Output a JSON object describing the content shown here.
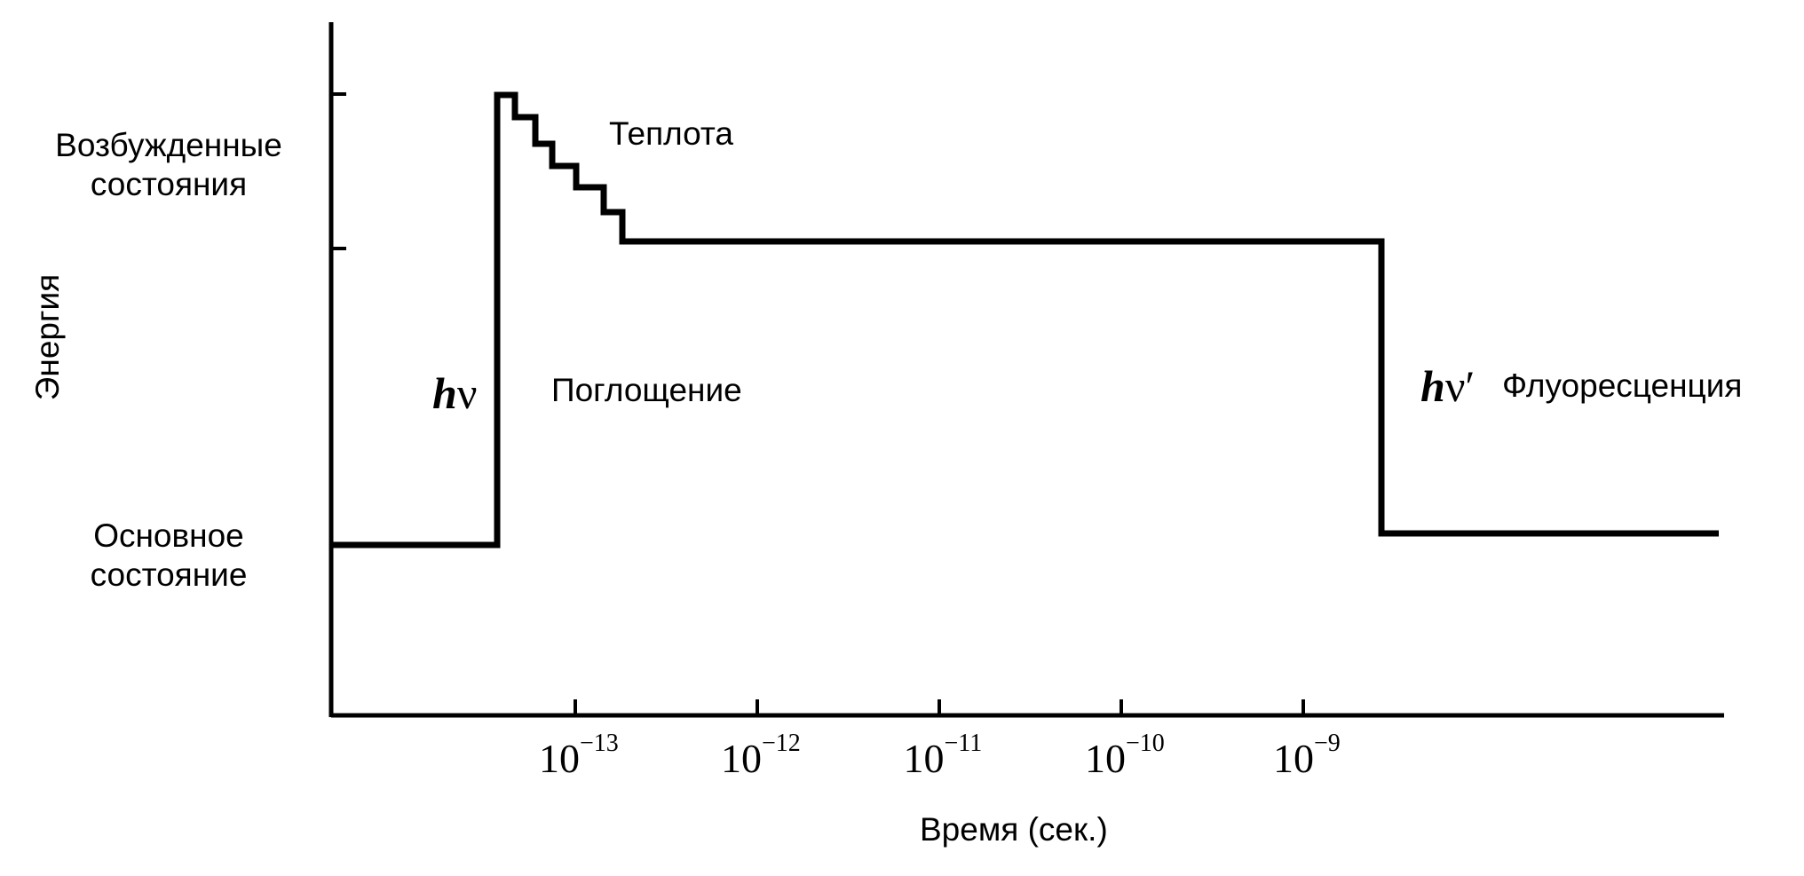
{
  "diagram": {
    "y_axis_title": "Энергия",
    "x_axis_title": "Время (сек.)",
    "excited_states_label": [
      "Возбужденные",
      "состояния"
    ],
    "ground_state_label": [
      "Основное",
      "состояние"
    ],
    "heat_label": "Теплота",
    "absorption_label": "Поглощение",
    "absorption_symbol": {
      "h": "h",
      "nu": "ν"
    },
    "fluorescence_label": "Флуоресценция",
    "fluorescence_symbol": {
      "h": "h",
      "nu": "ν′"
    },
    "time_ticks": [
      {
        "base": "10",
        "exp": "−13"
      },
      {
        "base": "10",
        "exp": "−12"
      },
      {
        "base": "10",
        "exp": "−11"
      },
      {
        "base": "10",
        "exp": "−10"
      },
      {
        "base": "10",
        "exp": "−9"
      }
    ]
  }
}
